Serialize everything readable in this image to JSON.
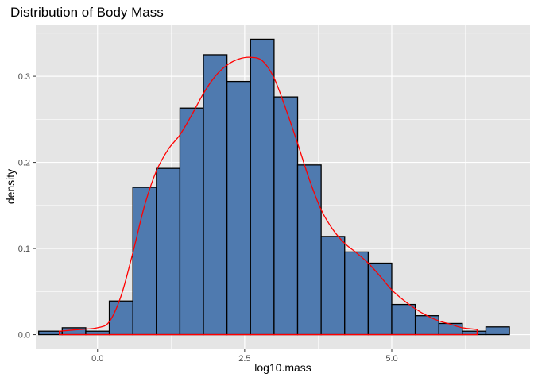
{
  "chart_data": {
    "type": "bar",
    "title": "Distribution of Body Mass",
    "xlabel": "log10.mass",
    "ylabel": "density",
    "xlim": [
      -1.05,
      7.35
    ],
    "ylim": [
      -0.017,
      0.36
    ],
    "x_ticks": [
      0.0,
      2.5,
      5.0
    ],
    "x_tick_labels": [
      "0.0",
      "2.5",
      "5.0"
    ],
    "y_ticks": [
      0.0,
      0.1,
      0.2,
      0.3
    ],
    "y_tick_labels": [
      "0.0",
      "0.1",
      "0.2",
      "0.3"
    ],
    "grid": true,
    "colors": {
      "panel": "#e5e5e5",
      "grid": "#ffffff",
      "bar_fill": "#4f7aaf",
      "bar_stroke": "#000000",
      "density_line": "#ff0000"
    },
    "histogram": {
      "bin_width": 0.4,
      "bin_starts": [
        -1.0,
        -0.6,
        -0.2,
        0.2,
        0.6,
        1.0,
        1.4,
        1.8,
        2.2,
        2.6,
        3.0,
        3.4,
        3.8,
        4.2,
        4.6,
        5.0,
        5.4,
        5.8,
        6.2,
        6.6
      ],
      "values": [
        0.004,
        0.008,
        0.004,
        0.039,
        0.171,
        0.193,
        0.263,
        0.325,
        0.294,
        0.343,
        0.276,
        0.197,
        0.114,
        0.096,
        0.083,
        0.035,
        0.022,
        0.013,
        0.004,
        0.009
      ]
    },
    "density": {
      "x": [
        -0.65,
        -0.3,
        0.0,
        0.2,
        0.4,
        0.6,
        0.8,
        1.0,
        1.2,
        1.4,
        1.6,
        1.8,
        2.0,
        2.2,
        2.4,
        2.6,
        2.8,
        3.0,
        3.2,
        3.4,
        3.6,
        3.8,
        4.0,
        4.2,
        4.4,
        4.6,
        4.8,
        5.0,
        5.2,
        5.4,
        5.6,
        5.8,
        6.0,
        6.2,
        6.45
      ],
      "y": [
        0.004,
        0.006,
        0.008,
        0.015,
        0.045,
        0.095,
        0.15,
        0.19,
        0.215,
        0.232,
        0.255,
        0.28,
        0.3,
        0.313,
        0.32,
        0.322,
        0.318,
        0.298,
        0.262,
        0.222,
        0.18,
        0.145,
        0.122,
        0.106,
        0.095,
        0.083,
        0.068,
        0.052,
        0.04,
        0.03,
        0.022,
        0.016,
        0.012,
        0.008,
        0.006
      ]
    }
  }
}
